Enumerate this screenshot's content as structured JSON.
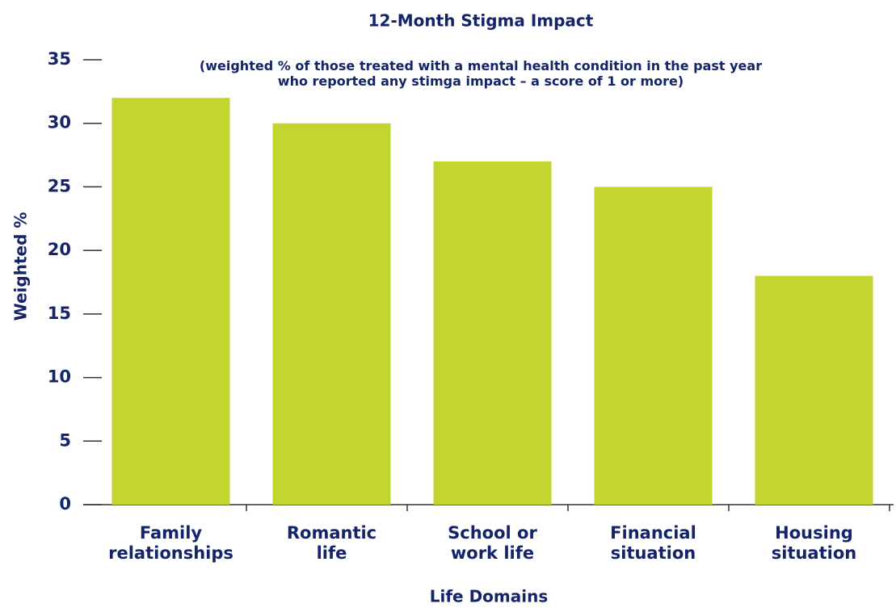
{
  "chart_data": {
    "type": "bar",
    "title": "12-Month Stigma Impact",
    "subtitle": "(weighted % of those treated with a mental health condition in the past year\nwho reported any stimga impact – a score of 1 or more)",
    "x_label": "Life Domains",
    "y_label": "Weighted %",
    "categories": [
      "Family\nrelationships",
      "Romantic\nlife",
      "School or\nwork life",
      "Financial\nsituation",
      "Housing\nsituation"
    ],
    "values": [
      32,
      30,
      27,
      25,
      18
    ],
    "color": "#c2d62f",
    "ylim": [
      0,
      35
    ],
    "yticks": [
      0,
      5,
      10,
      15,
      20,
      25,
      30,
      35
    ],
    "grid": false
  }
}
